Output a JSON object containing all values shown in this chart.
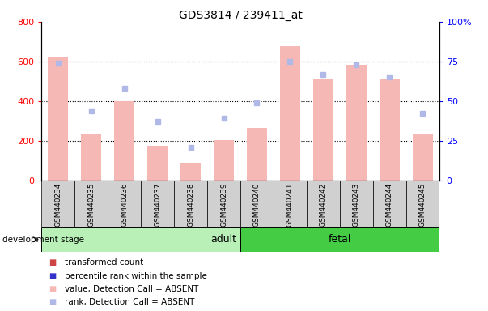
{
  "title": "GDS3814 / 239411_at",
  "samples": [
    "GSM440234",
    "GSM440235",
    "GSM440236",
    "GSM440237",
    "GSM440238",
    "GSM440239",
    "GSM440240",
    "GSM440241",
    "GSM440242",
    "GSM440243",
    "GSM440244",
    "GSM440245"
  ],
  "bar_values": [
    625,
    230,
    400,
    175,
    90,
    205,
    265,
    675,
    510,
    585,
    510,
    230
  ],
  "rank_values": [
    74,
    44,
    58,
    37,
    21,
    39,
    49,
    75,
    67,
    73,
    65,
    42
  ],
  "ylim_left": [
    0,
    800
  ],
  "ylim_right": [
    0,
    100
  ],
  "yticks_left": [
    0,
    200,
    400,
    600,
    800
  ],
  "yticks_right": [
    0,
    25,
    50,
    75,
    100
  ],
  "bar_color_absent": "#f5b8b5",
  "rank_color_absent": "#b0b8e8",
  "adult_color": "#b8f0b8",
  "fetal_color": "#44cc44",
  "adult_indices": [
    0,
    1,
    2,
    3,
    4,
    5
  ],
  "fetal_indices": [
    6,
    7,
    8,
    9,
    10,
    11
  ],
  "adult_label": "adult",
  "fetal_label": "fetal",
  "dev_stage_label": "development stage",
  "legend_items": [
    {
      "label": "transformed count",
      "color": "#cc4444"
    },
    {
      "label": "percentile rank within the sample",
      "color": "#3333cc"
    },
    {
      "label": "value, Detection Call = ABSENT",
      "color": "#f5b8b5"
    },
    {
      "label": "rank, Detection Call = ABSENT",
      "color": "#b0b8e8"
    }
  ],
  "grid_lines": [
    200,
    400,
    600
  ],
  "sample_box_color": "#d0d0d0",
  "left_axis_color": "red",
  "right_axis_color": "blue"
}
